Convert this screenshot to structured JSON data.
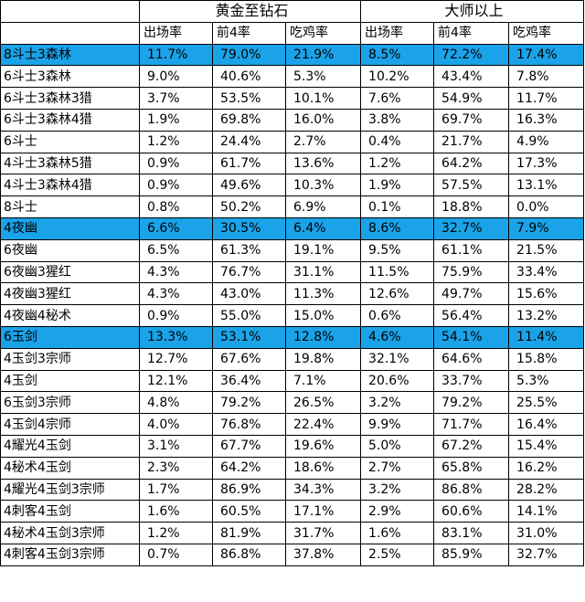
{
  "header": {
    "group_gold_diamond": "黄金至钻石",
    "group_master_plus": "大师以上",
    "cols": [
      "出场率",
      "前4率",
      "吃鸡率",
      "出场率",
      "前4率",
      "吃鸡率"
    ]
  },
  "rows": [
    {
      "name": "8斗士3森林",
      "hl": true,
      "v": [
        "11.7%",
        "79.0%",
        "21.9%",
        "8.5%",
        "72.2%",
        "17.4%"
      ]
    },
    {
      "name": "6斗士3森林",
      "hl": false,
      "v": [
        "9.0%",
        "40.6%",
        "5.3%",
        "10.2%",
        "43.4%",
        "7.8%"
      ]
    },
    {
      "name": "6斗士3森林3猎",
      "hl": false,
      "v": [
        "3.7%",
        "53.5%",
        "10.1%",
        "7.6%",
        "54.9%",
        "11.7%"
      ]
    },
    {
      "name": "6斗士3森林4猎",
      "hl": false,
      "v": [
        "1.9%",
        "69.8%",
        "16.0%",
        "3.8%",
        "69.7%",
        "16.3%"
      ]
    },
    {
      "name": "6斗士",
      "hl": false,
      "v": [
        "1.2%",
        "24.4%",
        "2.7%",
        "0.4%",
        "21.7%",
        "4.9%"
      ]
    },
    {
      "name": "4斗士3森林5猎",
      "hl": false,
      "v": [
        "0.9%",
        "61.7%",
        "13.6%",
        "1.2%",
        "64.2%",
        "17.3%"
      ]
    },
    {
      "name": "4斗士3森林4猎",
      "hl": false,
      "v": [
        "0.9%",
        "49.6%",
        "10.3%",
        "1.9%",
        "57.5%",
        "13.1%"
      ]
    },
    {
      "name": "8斗士",
      "hl": false,
      "v": [
        "0.8%",
        "50.2%",
        "6.9%",
        "0.1%",
        "18.8%",
        "0.0%"
      ]
    },
    {
      "name": "4夜幽",
      "hl": true,
      "v": [
        "6.6%",
        "30.5%",
        "6.4%",
        "8.6%",
        "32.7%",
        "7.9%"
      ]
    },
    {
      "name": "6夜幽",
      "hl": false,
      "v": [
        "6.5%",
        "61.3%",
        "19.1%",
        "9.5%",
        "61.1%",
        "21.5%"
      ]
    },
    {
      "name": "6夜幽3猩红",
      "hl": false,
      "v": [
        "4.3%",
        "76.7%",
        "31.1%",
        "11.5%",
        "75.9%",
        "33.4%"
      ]
    },
    {
      "name": "4夜幽3猩红",
      "hl": false,
      "v": [
        "4.3%",
        "43.0%",
        "11.3%",
        "12.6%",
        "49.7%",
        "15.6%"
      ]
    },
    {
      "name": "4夜幽4秘术",
      "hl": false,
      "v": [
        "0.9%",
        "55.0%",
        "15.0%",
        "0.6%",
        "56.4%",
        "13.2%"
      ]
    },
    {
      "name": "6玉剑",
      "hl": true,
      "v": [
        "13.3%",
        "53.1%",
        "12.8%",
        "4.6%",
        "54.1%",
        "11.4%"
      ]
    },
    {
      "name": "4玉剑3宗师",
      "hl": false,
      "v": [
        "12.7%",
        "67.6%",
        "19.8%",
        "32.1%",
        "64.6%",
        "15.8%"
      ]
    },
    {
      "name": "4玉剑",
      "hl": false,
      "v": [
        "12.1%",
        "36.4%",
        "7.1%",
        "20.6%",
        "33.7%",
        "5.3%"
      ]
    },
    {
      "name": "6玉剑3宗师",
      "hl": false,
      "v": [
        "4.8%",
        "79.2%",
        "26.5%",
        "3.2%",
        "79.2%",
        "25.5%"
      ]
    },
    {
      "name": "4玉剑4宗师",
      "hl": false,
      "v": [
        "4.0%",
        "76.8%",
        "22.4%",
        "9.9%",
        "71.7%",
        "16.4%"
      ]
    },
    {
      "name": "4耀光4玉剑",
      "hl": false,
      "v": [
        "3.1%",
        "67.7%",
        "19.6%",
        "5.0%",
        "67.2%",
        "15.4%"
      ]
    },
    {
      "name": "4秘术4玉剑",
      "hl": false,
      "v": [
        "2.3%",
        "64.2%",
        "18.6%",
        "2.7%",
        "65.8%",
        "16.2%"
      ]
    },
    {
      "name": "4耀光4玉剑3宗师",
      "hl": false,
      "v": [
        "1.7%",
        "86.9%",
        "34.3%",
        "3.2%",
        "86.8%",
        "28.2%"
      ]
    },
    {
      "name": "4刺客4玉剑",
      "hl": false,
      "v": [
        "1.6%",
        "60.5%",
        "17.1%",
        "2.9%",
        "60.6%",
        "14.1%"
      ]
    },
    {
      "name": "4秘术4玉剑3宗师",
      "hl": false,
      "v": [
        "1.2%",
        "81.9%",
        "31.7%",
        "1.6%",
        "83.1%",
        "31.0%"
      ]
    },
    {
      "name": "4刺客4玉剑3宗师",
      "hl": false,
      "v": [
        "0.7%",
        "86.8%",
        "37.8%",
        "2.5%",
        "85.9%",
        "32.7%"
      ]
    }
  ],
  "colors": {
    "highlight": "#1aa3e8",
    "border": "#000000"
  }
}
